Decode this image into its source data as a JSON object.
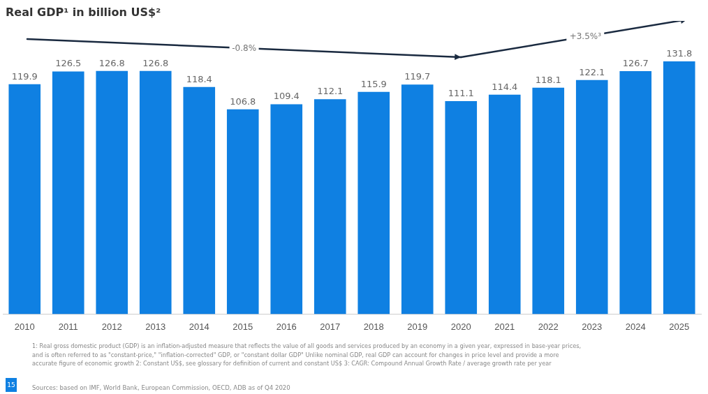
{
  "chart_data": {
    "type": "bar",
    "title": "Real GDP¹ in billion US$²",
    "categories": [
      "2010",
      "2011",
      "2012",
      "2013",
      "2014",
      "2015",
      "2016",
      "2017",
      "2018",
      "2019",
      "2020",
      "2021",
      "2022",
      "2023",
      "2024",
      "2025"
    ],
    "values": [
      119.9,
      126.5,
      126.8,
      126.8,
      118.4,
      106.8,
      109.4,
      112.1,
      115.9,
      119.7,
      111.1,
      114.4,
      118.1,
      122.1,
      126.7,
      131.8
    ],
    "color": "#0f80e2",
    "data_labels": true,
    "grid": false,
    "legend": false,
    "annotations": [
      "-0.8%",
      "+3.5%³",
      "1: Real gross domestic product (GDP) is an inflation-adjusted measure that reflects the value of all goods and services produced by an economy in a given year, expressed in base-year prices, and is often referred to as \"constant-price,\" \"inflation-corrected\" GDP, or \"constant dollar GDP\" Unlike nominal GDP, real GDP can account for changes in price level and provide a more accurate figure of economic growth 2: Constant US$, see glossary for definition of current and constant US$ 3: CAGR: Compound Annual Growth Rate / average growth rate per year",
      "Sources: based on IMF, World Bank, European Commission, OECD, ADB as of Q4 2020",
      "15"
    ]
  }
}
